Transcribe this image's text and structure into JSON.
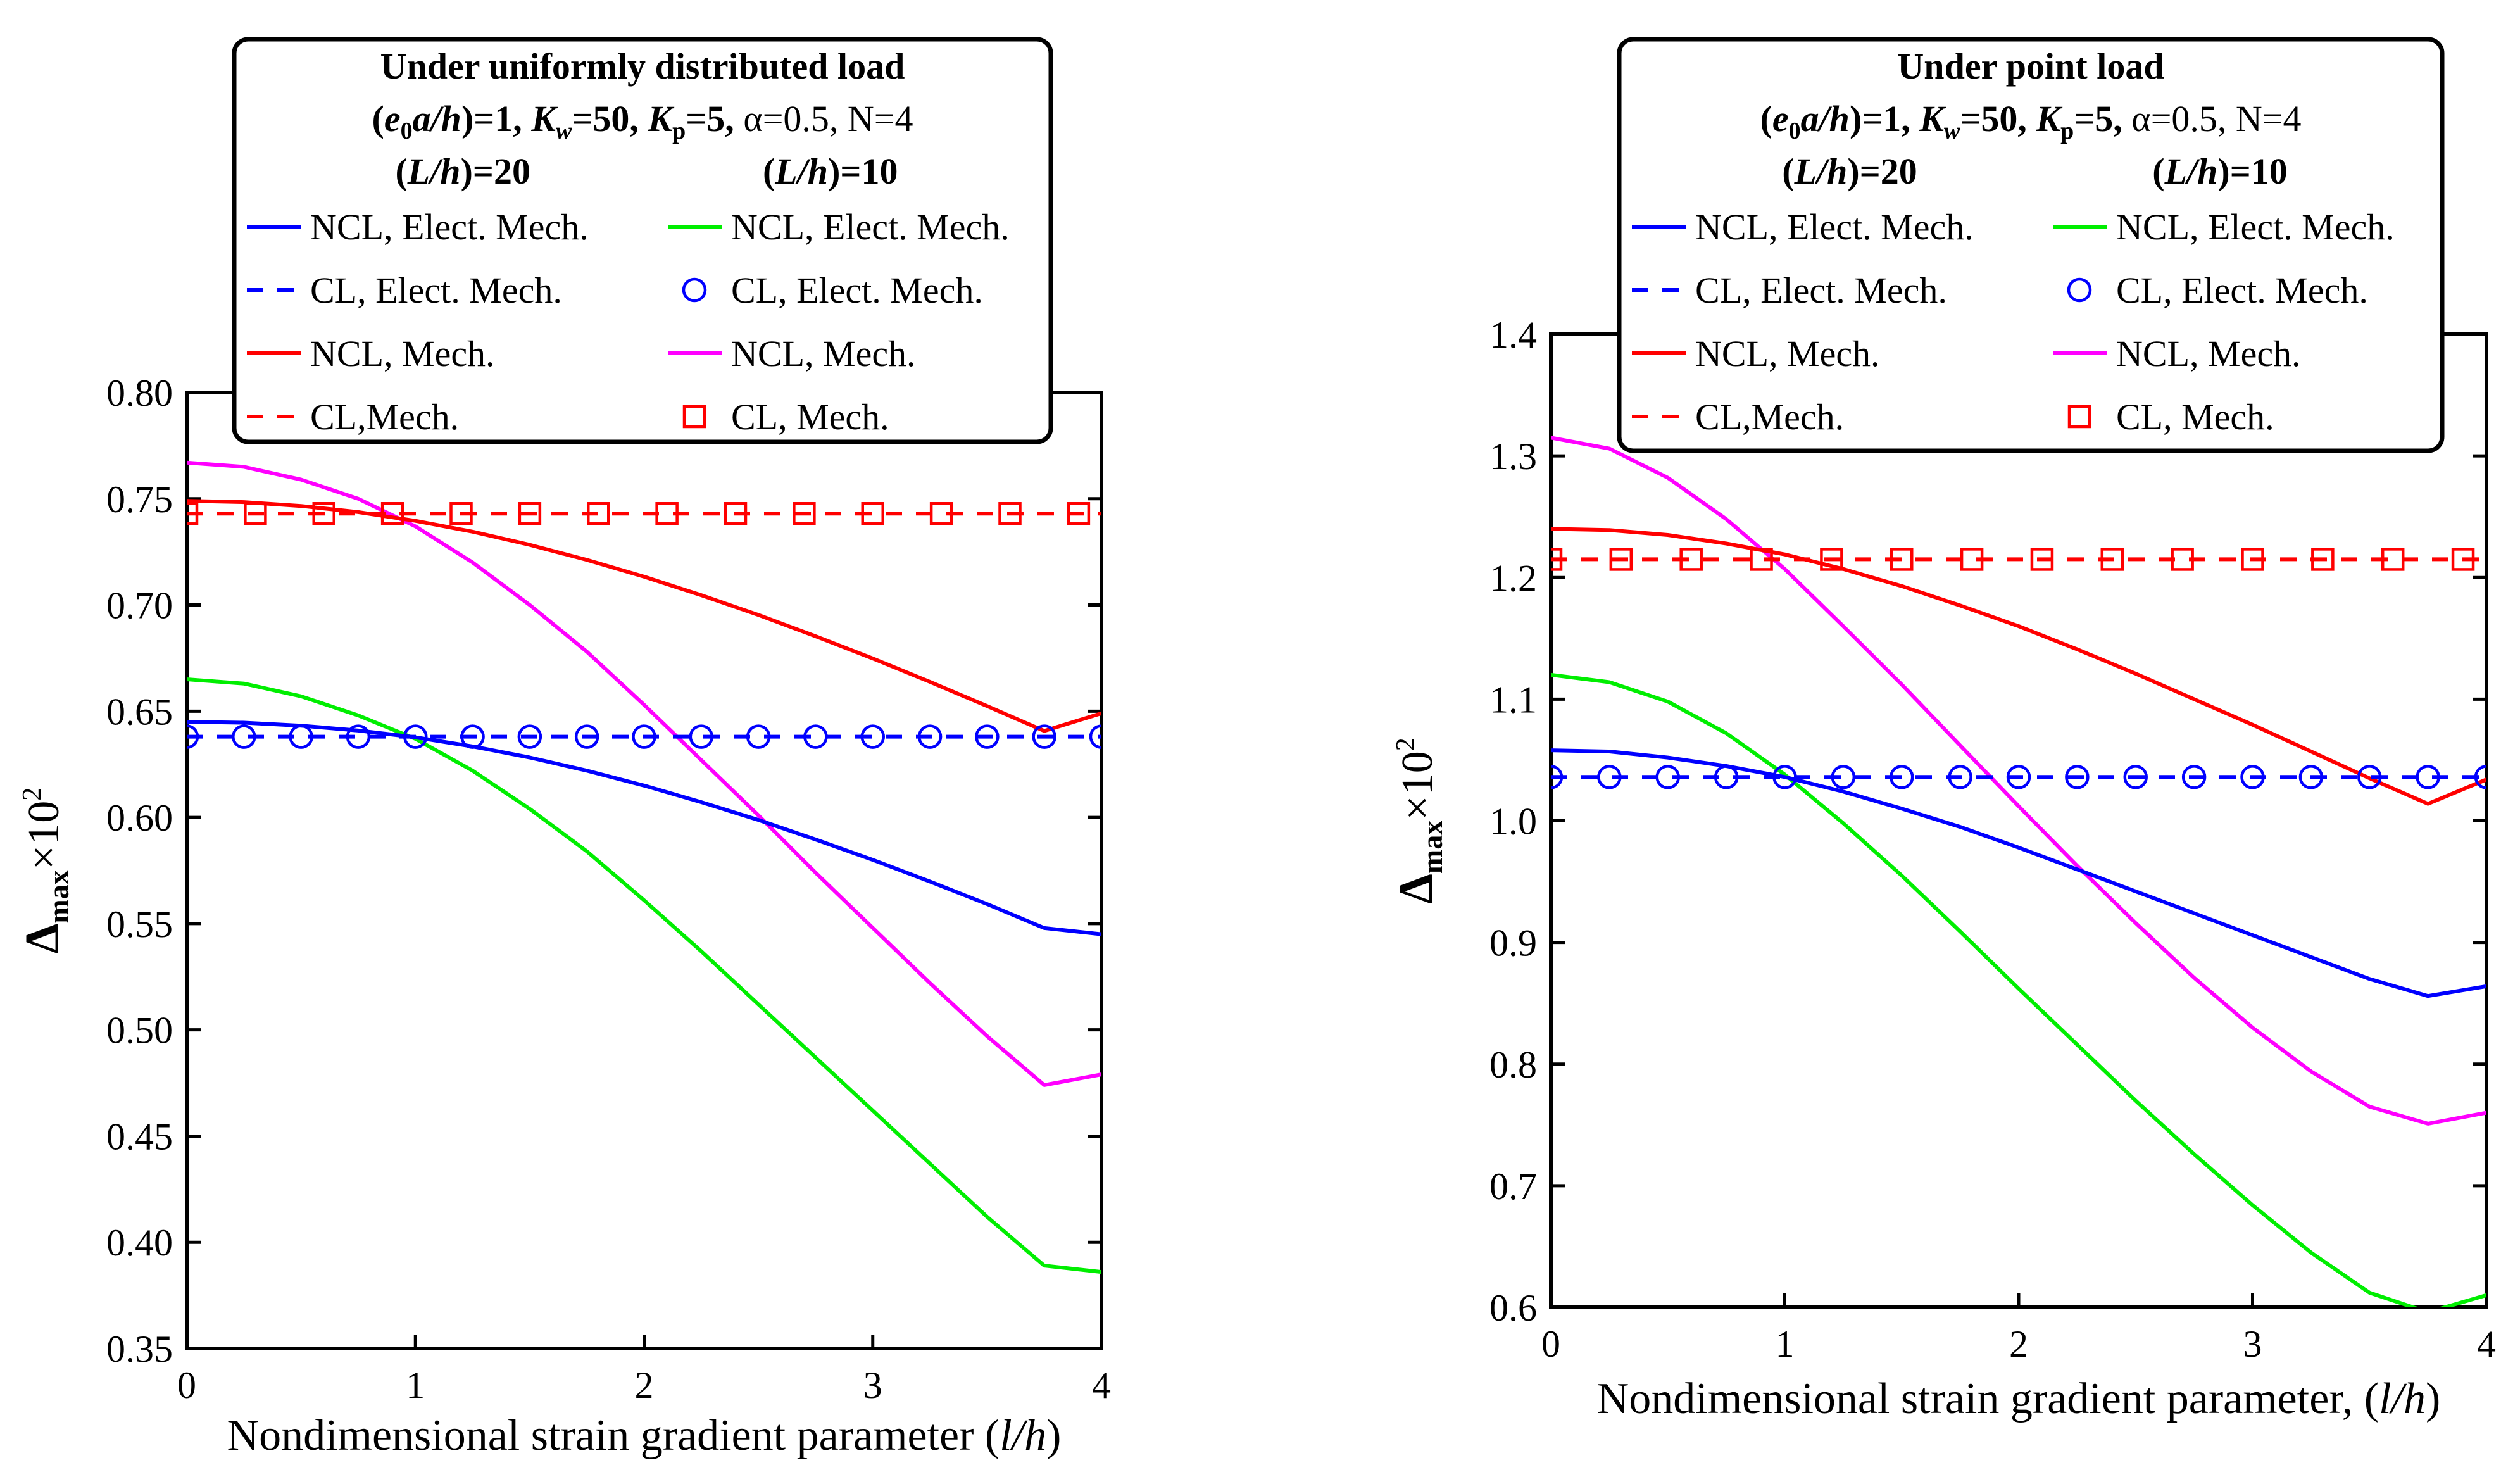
{
  "charts": [
    {
      "type": "line",
      "title": "Under uniformly distributed load",
      "params": {
        "t1": "(",
        "e0": "e",
        "e0sub": "0",
        "t2": "a/h",
        "t3": ")=1, ",
        "kw": "K",
        "kwsub": "w",
        "t4": "=50, ",
        "kp": "K",
        "kpsub": "p",
        "t5": "=5, ",
        "rest": "α=0.5, N=4"
      },
      "groups": [
        {
          "pre": "(",
          "var": "L/h",
          "post": ")=20"
        },
        {
          "pre": "(",
          "var": "L/h",
          "post": ")=10"
        }
      ],
      "xlabel": {
        "text": "Nondimensional strain gradient parameter (",
        "var": "l/h",
        "close": ")"
      },
      "ylabel": {
        "delta": "Δ",
        "sub": "max",
        "times": "×10",
        "sup": "2"
      },
      "xlim": [
        0,
        4
      ],
      "ylim": [
        0.35,
        0.8
      ],
      "xticks": [
        "0",
        "1",
        "2",
        "3",
        "4"
      ],
      "yticks": [
        "0.35",
        "0.40",
        "0.45",
        "0.50",
        "0.55",
        "0.60",
        "0.65",
        "0.70",
        "0.75",
        "0.80"
      ],
      "x": [
        0,
        0.25,
        0.5,
        0.75,
        1,
        1.25,
        1.5,
        1.75,
        2,
        2.25,
        2.5,
        2.75,
        3,
        3.25,
        3.5,
        3.75,
        4
      ],
      "series": [
        {
          "name": "NCL, Elect. Mech.",
          "group": "(L/h)=20",
          "style": "solid",
          "color": "#0000ff",
          "values": [
            0.645,
            0.6446,
            0.6432,
            0.6409,
            0.6377,
            0.6334,
            0.6282,
            0.622,
            0.615,
            0.6072,
            0.5988,
            0.5896,
            0.58,
            0.5698,
            0.5592,
            0.5479,
            0.545
          ]
        },
        {
          "name": "CL, Elect. Mech.",
          "group": "(L/h)=20",
          "style": "dashed",
          "color": "#0000ff",
          "values": [
            0.638,
            0.638,
            0.638,
            0.638,
            0.638,
            0.638,
            0.638,
            0.638,
            0.638,
            0.638,
            0.638,
            0.638,
            0.638,
            0.638,
            0.638,
            0.638,
            0.638
          ]
        },
        {
          "name": "NCL, Mech.",
          "group": "(L/h)=20",
          "style": "solid",
          "color": "#ff0000",
          "values": [
            0.749,
            0.7484,
            0.7466,
            0.7437,
            0.7396,
            0.7345,
            0.7283,
            0.7212,
            0.7133,
            0.7046,
            0.6953,
            0.6853,
            0.6748,
            0.6638,
            0.6524,
            0.6407,
            0.649
          ]
        },
        {
          "name": "CL,Mech.",
          "group": "(L/h)=20",
          "style": "dashed",
          "color": "#ff0000",
          "values": [
            0.743,
            0.743,
            0.743,
            0.743,
            0.743,
            0.743,
            0.743,
            0.743,
            0.743,
            0.743,
            0.743,
            0.743,
            0.743,
            0.743,
            0.743,
            0.743,
            0.743
          ]
        },
        {
          "name": "NCL, Elect. Mech.",
          "group": "(L/h)=10",
          "style": "solid",
          "color": "#00ee00",
          "values": [
            0.665,
            0.663,
            0.657,
            0.648,
            0.637,
            0.622,
            0.604,
            0.584,
            0.561,
            0.537,
            0.512,
            0.487,
            0.462,
            0.437,
            0.412,
            0.389,
            0.386
          ]
        },
        {
          "name": "CL, Elect. Mech.",
          "group": "(L/h)=10",
          "style": "circles",
          "color": "#0000ff",
          "values": [
            0.638,
            0.638,
            0.638,
            0.638,
            0.638,
            0.638,
            0.638,
            0.638,
            0.638,
            0.638,
            0.638,
            0.638,
            0.638,
            0.638,
            0.638,
            0.638,
            0.638
          ]
        },
        {
          "name": "NCL, Mech.",
          "group": "(L/h)=10",
          "style": "solid",
          "color": "#ff00ff",
          "values": [
            0.767,
            0.765,
            0.759,
            0.75,
            0.737,
            0.72,
            0.7,
            0.678,
            0.653,
            0.627,
            0.601,
            0.574,
            0.548,
            0.522,
            0.497,
            0.474,
            0.479
          ]
        },
        {
          "name": "CL, Mech.",
          "group": "(L/h)=10",
          "style": "squares",
          "color": "#ff0000",
          "markerX": [
            0,
            0.3,
            0.6,
            0.9,
            1.2,
            1.5,
            1.8,
            2.1,
            2.4,
            2.7,
            3.0,
            3.3,
            3.6,
            3.9
          ],
          "value": 0.743
        }
      ]
    },
    {
      "type": "line",
      "title": "Under point load",
      "params": {
        "t1": "(",
        "e0": "e",
        "e0sub": "0",
        "t2": "a/h",
        "t3": ")=1, ",
        "kw": "K",
        "kwsub": "w",
        "t4": "=50, ",
        "kp": "K",
        "kpsub": "p",
        "t5": "=5, ",
        "rest": "α=0.5, N=4"
      },
      "groups": [
        {
          "pre": "(",
          "var": "L/h",
          "post": ")=20"
        },
        {
          "pre": "(",
          "var": "L/h",
          "post": ")=10"
        }
      ],
      "xlabel": {
        "text": "Nondimensional strain gradient parameter, (",
        "var": "l/h",
        "close": ")"
      },
      "ylabel": {
        "delta": "Δ",
        "sub": "max",
        "times": "×10",
        "sup": "2"
      },
      "xlim": [
        0,
        4
      ],
      "ylim": [
        0.6,
        1.4
      ],
      "xticks": [
        "0",
        "1",
        "2",
        "3",
        "4"
      ],
      "yticks": [
        "0.6",
        "0.7",
        "0.8",
        "0.9",
        "1.0",
        "1.1",
        "1.2",
        "1.3",
        "1.4"
      ],
      "x": [
        0,
        0.25,
        0.5,
        0.75,
        1,
        1.25,
        1.5,
        1.75,
        2,
        2.25,
        2.5,
        2.75,
        3,
        3.25,
        3.5,
        3.75,
        4
      ],
      "series": [
        {
          "name": "NCL, Elect. Mech.",
          "group": "(L/h)=20",
          "style": "solid",
          "color": "#0000ff",
          "values": [
            1.058,
            1.057,
            1.052,
            1.045,
            1.036,
            1.024,
            1.01,
            0.995,
            0.978,
            0.96,
            0.942,
            0.924,
            0.906,
            0.888,
            0.87,
            0.856,
            0.864
          ]
        },
        {
          "name": "CL, Elect. Mech.",
          "group": "(L/h)=20",
          "style": "dashed",
          "color": "#0000ff",
          "values": [
            1.036,
            1.036,
            1.036,
            1.036,
            1.036,
            1.036,
            1.036,
            1.036,
            1.036,
            1.036,
            1.036,
            1.036,
            1.036,
            1.036,
            1.036,
            1.036,
            1.036
          ]
        },
        {
          "name": "NCL, Mech.",
          "group": "(L/h)=20",
          "style": "solid",
          "color": "#ff0000",
          "values": [
            1.24,
            1.239,
            1.235,
            1.228,
            1.219,
            1.207,
            1.193,
            1.177,
            1.16,
            1.141,
            1.121,
            1.1,
            1.079,
            1.057,
            1.035,
            1.014,
            1.034
          ]
        },
        {
          "name": "CL,Mech.",
          "group": "(L/h)=20",
          "style": "dashed",
          "color": "#ff0000",
          "values": [
            1.215,
            1.215,
            1.215,
            1.215,
            1.215,
            1.215,
            1.215,
            1.215,
            1.215,
            1.215,
            1.215,
            1.215,
            1.215,
            1.215,
            1.215,
            1.215,
            1.215
          ]
        },
        {
          "name": "NCL, Elect. Mech.",
          "group": "(L/h)=10",
          "style": "solid",
          "color": "#00ee00",
          "values": [
            1.12,
            1.114,
            1.098,
            1.072,
            1.038,
            0.998,
            0.955,
            0.909,
            0.862,
            0.816,
            0.77,
            0.726,
            0.684,
            0.645,
            0.612,
            0.596,
            0.61
          ]
        },
        {
          "name": "CL, Elect. Mech.",
          "group": "(L/h)=10",
          "style": "circles",
          "color": "#0000ff",
          "values": [
            1.036,
            1.036,
            1.036,
            1.036,
            1.036,
            1.036,
            1.036,
            1.036,
            1.036,
            1.036,
            1.036,
            1.036,
            1.036,
            1.036,
            1.036,
            1.036,
            1.036
          ]
        },
        {
          "name": "NCL, Mech.",
          "group": "(L/h)=10",
          "style": "solid",
          "color": "#ff00ff",
          "values": [
            1.315,
            1.306,
            1.282,
            1.248,
            1.207,
            1.16,
            1.112,
            1.062,
            1.012,
            0.963,
            0.916,
            0.871,
            0.83,
            0.794,
            0.765,
            0.751,
            0.76
          ]
        },
        {
          "name": "CL, Mech.",
          "group": "(L/h)=10",
          "style": "squares",
          "color": "#ff0000",
          "markerX": [
            0,
            0.3,
            0.6,
            0.9,
            1.2,
            1.5,
            1.8,
            2.1,
            2.4,
            2.7,
            3.0,
            3.3,
            3.6,
            3.9
          ],
          "value": 1.215
        }
      ]
    }
  ]
}
